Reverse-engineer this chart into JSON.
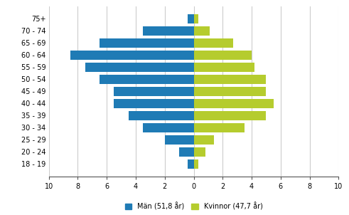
{
  "age_groups": [
    "18 - 19",
    "20 - 24",
    "25 - 29",
    "30 - 34",
    "35 - 39",
    "40 - 44",
    "45 - 49",
    "50 - 54",
    "55 - 59",
    "60 - 64",
    "65 - 69",
    "70 - 74",
    "75+"
  ],
  "men_values": [
    0.4,
    1.0,
    2.0,
    3.5,
    4.5,
    5.5,
    5.5,
    6.5,
    7.5,
    8.5,
    6.5,
    3.5,
    0.4
  ],
  "women_values": [
    0.3,
    0.8,
    1.4,
    3.5,
    5.0,
    5.5,
    5.0,
    5.0,
    4.2,
    4.0,
    2.7,
    1.1,
    0.3
  ],
  "men_color": "#1f7bb5",
  "women_color": "#b5cc2e",
  "men_label": "Män (51,8 år)",
  "women_label": "Kvinnor (47,7 år)",
  "xlim": [
    -10,
    10
  ],
  "xticks": [
    -10,
    -8,
    -6,
    -4,
    -2,
    0,
    2,
    4,
    6,
    8,
    10
  ],
  "xtick_labels": [
    "10",
    "8",
    "6",
    "4",
    "2",
    "0",
    "2",
    "4",
    "6",
    "8",
    "10"
  ],
  "background_color": "#ffffff",
  "grid_color": "#cccccc",
  "bar_height": 0.75
}
